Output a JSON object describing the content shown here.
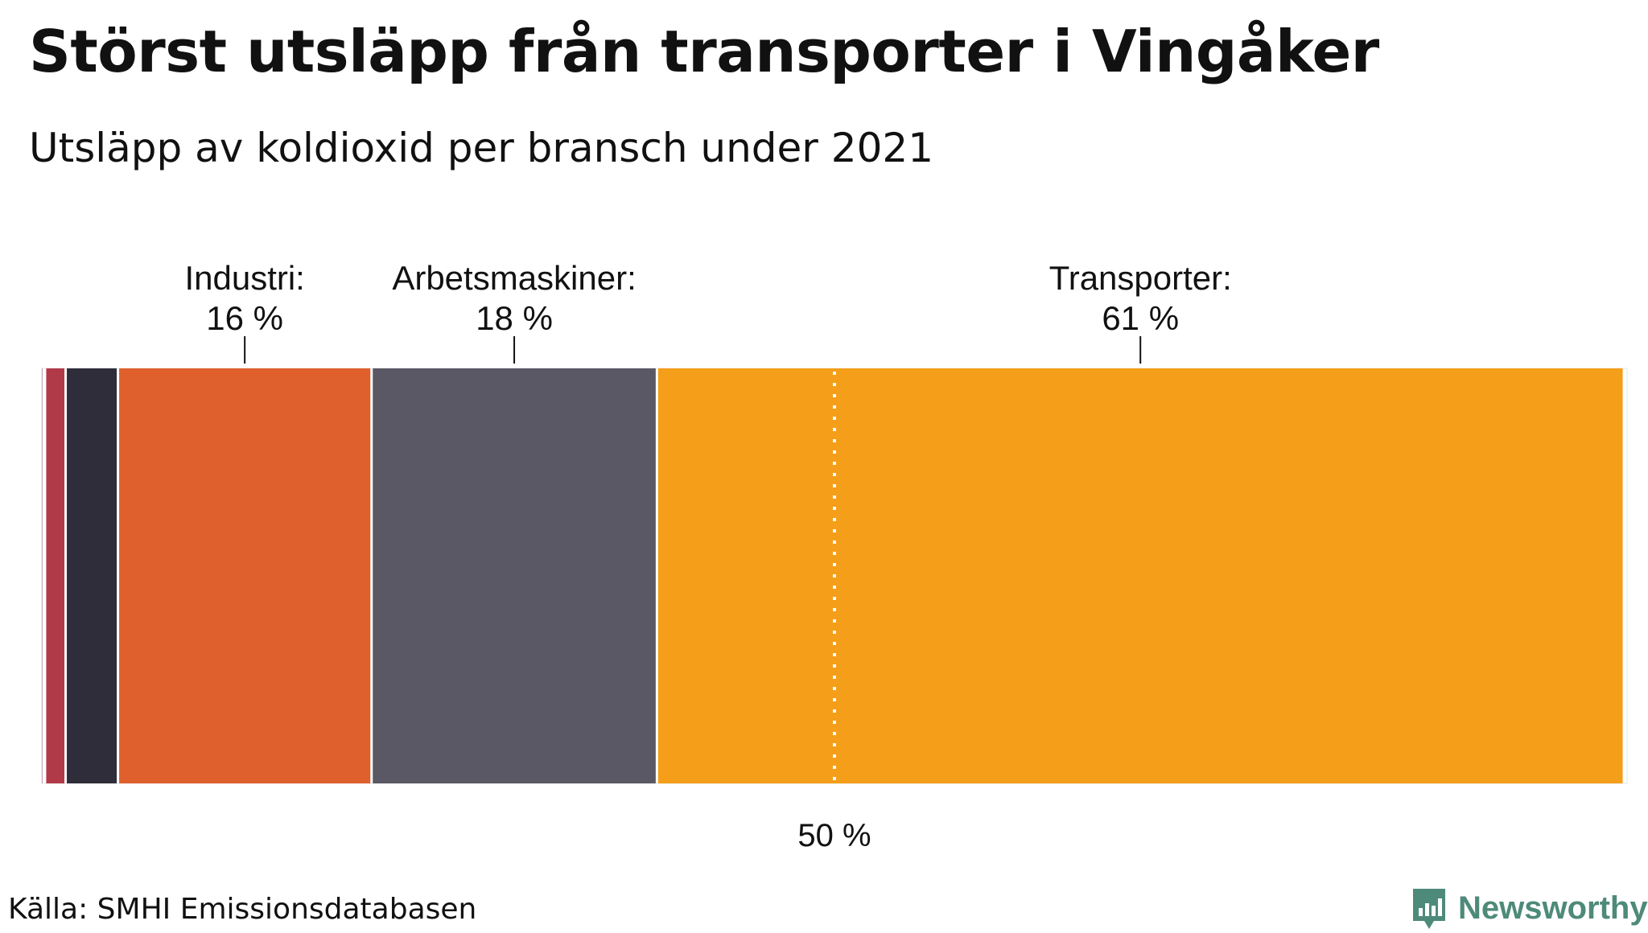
{
  "title": "Störst utsläpp från transporter i Vingåker",
  "subtitle": "Utsläpp av koldioxid per bransch under 2021",
  "source": "Källa: SMHI Emissionsdatabasen",
  "brand": {
    "name": "Newsworthy",
    "icon": "newsworthy-logo-icon",
    "color": "#4e8a79"
  },
  "chart_data": {
    "type": "bar",
    "stacked": true,
    "orientation": "horizontal",
    "unit": "%",
    "xlim": [
      0,
      100
    ],
    "reference_line": {
      "value": 50,
      "label": "50 %",
      "style": "dotted"
    },
    "segments": [
      {
        "value": 0.2,
        "color": "#c7a3b6",
        "label": ""
      },
      {
        "value": 1.3,
        "color": "#b03a48",
        "label": ""
      },
      {
        "value": 3.3,
        "color": "#2f2d3a",
        "label": ""
      },
      {
        "value": 16,
        "color": "#e0602d",
        "label": "Industri:",
        "value_label": "16 %"
      },
      {
        "value": 18,
        "color": "#5a5865",
        "label": "Arbetsmaskiner:",
        "value_label": "18 %"
      },
      {
        "value": 61,
        "color": "#f59e19",
        "label": "Transporter:",
        "value_label": "61 %"
      }
    ]
  }
}
